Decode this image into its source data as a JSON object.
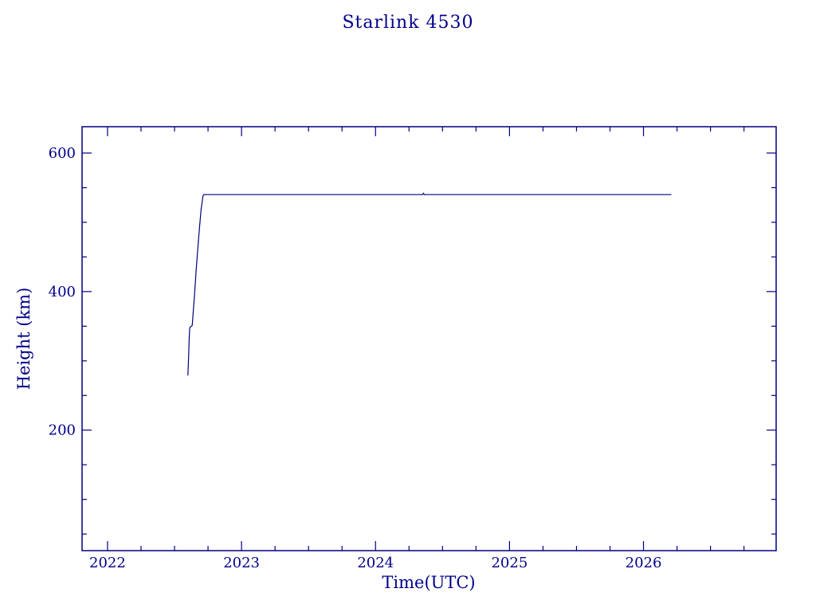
{
  "colors": {
    "line": "#000080",
    "axes": "#000080",
    "text": "#00008b",
    "background": "#ffffff"
  },
  "chart_data": {
    "type": "line",
    "title": "Starlink 4530",
    "xlabel": "Time(UTC)",
    "ylabel": "Height (km)",
    "xlim": [
      2021.81,
      2026.99
    ],
    "ylim": [
      26,
      638
    ],
    "x_major_ticks": [
      2022,
      2023,
      2024,
      2025,
      2026
    ],
    "x_tick_labels": [
      "2022",
      "2023",
      "2024",
      "2025",
      "2026"
    ],
    "x_minor_step": 0.25,
    "y_major_ticks": [
      200,
      400,
      600
    ],
    "y_tick_labels": [
      "200",
      "400",
      "600"
    ],
    "y_minor_step": 50,
    "grid": false,
    "legend": false,
    "series": [
      {
        "name": "Starlink 4530 height",
        "color": "#000080",
        "points": [
          [
            2022.6,
            279
          ],
          [
            2022.604,
            300
          ],
          [
            2022.61,
            335
          ],
          [
            2022.614,
            348
          ],
          [
            2022.632,
            351
          ],
          [
            2022.648,
            392
          ],
          [
            2022.664,
            438
          ],
          [
            2022.682,
            482
          ],
          [
            2022.698,
            518
          ],
          [
            2022.712,
            538
          ],
          [
            2022.718,
            540
          ],
          [
            2024.352,
            540
          ],
          [
            2024.358,
            542
          ],
          [
            2024.364,
            540
          ],
          [
            2026.208,
            540
          ]
        ]
      }
    ]
  }
}
